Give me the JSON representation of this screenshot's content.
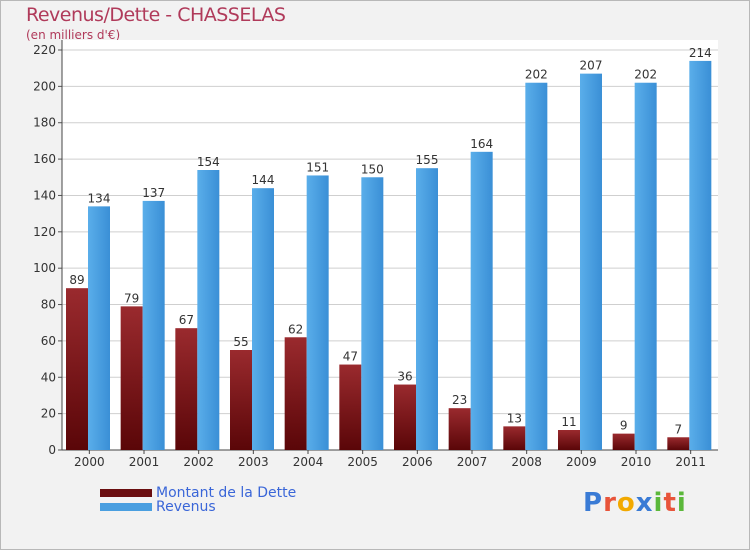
{
  "header": {
    "title": "Revenus/Dette - CHASSELAS",
    "subtitle": "(en milliers d'€)"
  },
  "chart_data": {
    "type": "bar",
    "categories": [
      "2000",
      "2001",
      "2002",
      "2003",
      "2004",
      "2005",
      "2006",
      "2007",
      "2008",
      "2009",
      "2010",
      "2011"
    ],
    "series": [
      {
        "name": "Montant de la Dette",
        "color": "#7a1416",
        "values": [
          89,
          79,
          67,
          55,
          62,
          47,
          36,
          23,
          13,
          11,
          9,
          7
        ]
      },
      {
        "name": "Revenus",
        "color": "#4a9fe0",
        "values": [
          134,
          137,
          154,
          144,
          151,
          150,
          155,
          164,
          202,
          207,
          202,
          214
        ]
      }
    ],
    "yticks": [
      0,
      20,
      40,
      60,
      80,
      100,
      120,
      140,
      160,
      180,
      200,
      220
    ],
    "ylim": [
      0,
      220
    ],
    "grid": true,
    "legend": "bottom-left"
  },
  "logo": {
    "letters": [
      "P",
      "r",
      "o",
      "x",
      "i",
      "t",
      "i"
    ],
    "colors": [
      "#3a7bd5",
      "#e8543a",
      "#f2a900",
      "#3a7bd5",
      "#5bb83a",
      "#e8543a",
      "#5bb83a"
    ]
  }
}
